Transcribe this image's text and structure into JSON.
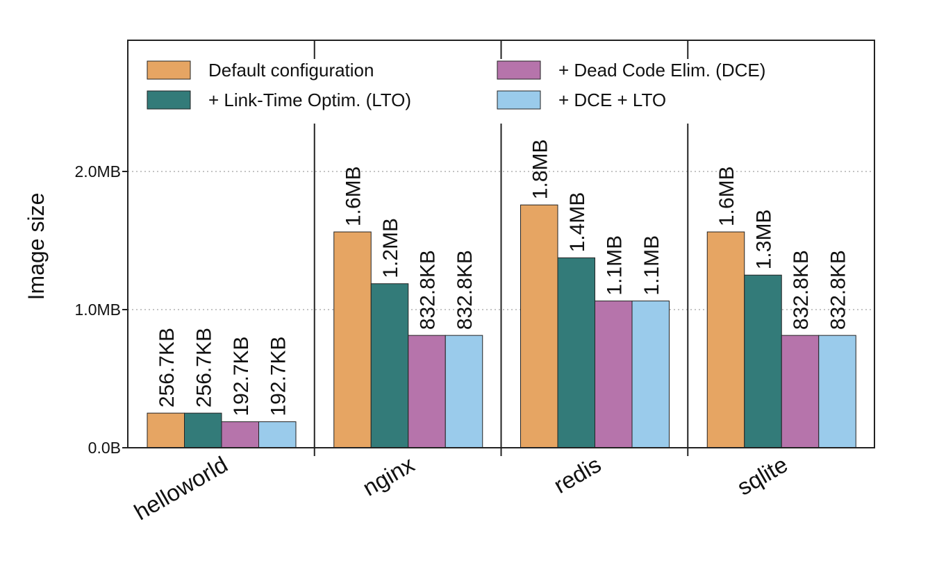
{
  "chart_data": {
    "type": "bar",
    "title": "",
    "xlabel": "",
    "ylabel": "Image size",
    "ylim": [
      0,
      2.9
    ],
    "y_unit": "MB",
    "yticks": [
      {
        "value": 0,
        "label": "0.0B"
      },
      {
        "value": 1,
        "label": "1.0MB"
      },
      {
        "value": 2,
        "label": "2.0MB"
      }
    ],
    "grid": "horizontal dotted",
    "legend_position": "top",
    "categories": [
      "helloworld",
      "nginx",
      "redis",
      "sqlite"
    ],
    "series": [
      {
        "name": "Default configuration",
        "color": "#e6a563",
        "values": [
          0.2507,
          1.5625,
          1.7578,
          1.5625
        ],
        "labels": [
          "256.7KB",
          "1.6MB",
          "1.8MB",
          "1.6MB"
        ]
      },
      {
        "name": "+ Link-Time Optim. (LTO)",
        "color": "#337b79",
        "values": [
          0.2507,
          1.1875,
          1.375,
          1.25
        ],
        "labels": [
          "256.7KB",
          "1.2MB",
          "1.4MB",
          "1.3MB"
        ]
      },
      {
        "name": "+ Dead Code Elim. (DCE)",
        "color": "#b674ab",
        "values": [
          0.1882,
          0.8133,
          1.0625,
          0.8133
        ],
        "labels": [
          "192.7KB",
          "832.8KB",
          "1.1MB",
          "832.8KB"
        ]
      },
      {
        "name": "+ DCE + LTO",
        "color": "#9acbeb",
        "values": [
          0.1882,
          0.8133,
          1.0625,
          0.8133
        ],
        "labels": [
          "192.7KB",
          "832.8KB",
          "1.1MB",
          "832.8KB"
        ]
      }
    ]
  }
}
